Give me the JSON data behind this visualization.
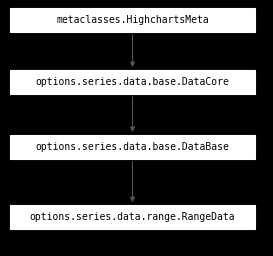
{
  "nodes": [
    "metaclasses.HighchartsMeta",
    "options.series.data.base.DataCore",
    "options.series.data.base.DataBase",
    "options.series.data.range.RangeData"
  ],
  "background_color": "#000000",
  "box_facecolor": "#ffffff",
  "box_edgecolor": "#ffffff",
  "text_color": "#000000",
  "font_size": 7.0,
  "arrow_color": "#555555",
  "fig_width": 2.73,
  "fig_height": 2.56,
  "dpi": 100
}
